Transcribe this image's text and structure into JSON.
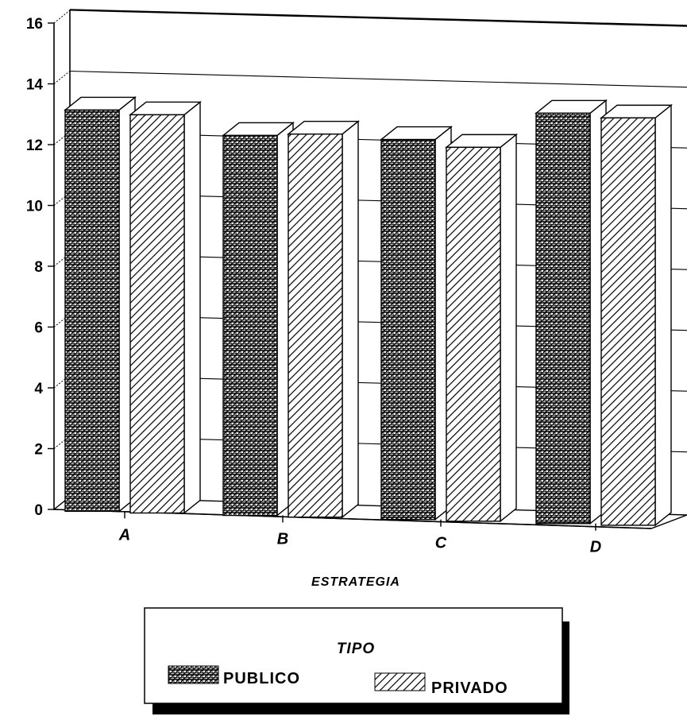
{
  "chart_data": {
    "type": "bar",
    "categories": [
      "A",
      "B",
      "C",
      "D"
    ],
    "series": [
      {
        "name": "PUBLICO",
        "values": [
          13.2,
          12.5,
          12.5,
          13.5
        ]
      },
      {
        "name": "PRIVADO",
        "values": [
          13.1,
          12.6,
          12.3,
          13.4
        ]
      }
    ],
    "xlabel": "ESTRATEGIA",
    "ylabel": "",
    "ylim": [
      0,
      16
    ],
    "yticks": [
      "0",
      "2",
      "4",
      "6",
      "8",
      "10",
      "12",
      "14",
      "16"
    ],
    "grid": true,
    "legend": {
      "title": "TIPO",
      "placement": "bottom-center"
    },
    "style": "3d"
  }
}
